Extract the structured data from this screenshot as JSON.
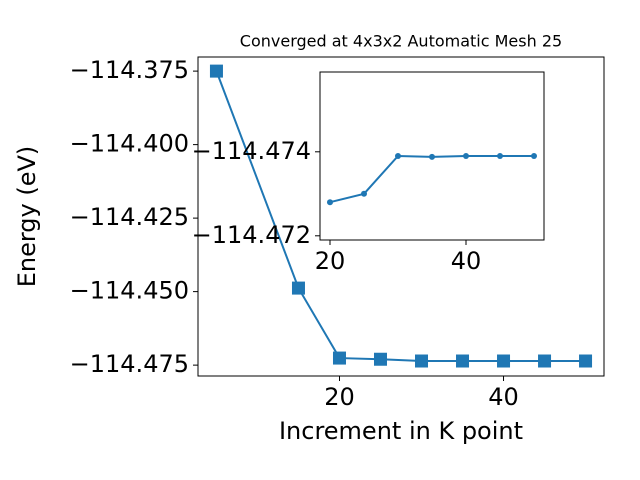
{
  "chart_data": [
    {
      "type": "line",
      "title": "Converged at 4x3x2 Automatic Mesh 25",
      "x_label": "Increment in K point",
      "y_label": "Energy (eV)",
      "marker": "square",
      "color": "#1f77b4",
      "x": [
        5,
        15,
        20,
        25,
        30,
        35,
        40,
        45,
        50
      ],
      "values": [
        -114.375,
        -114.4488,
        -114.4726,
        -114.473,
        -114.4736,
        -114.4736,
        -114.4736,
        -114.4736,
        -114.4736
      ],
      "xlim": [
        2.75,
        52.25
      ],
      "ylim": [
        -114.4787,
        -114.3702
      ],
      "xticks": [
        20,
        40
      ],
      "yticks": [
        {
          "value": -114.375,
          "label": "−114.375"
        },
        {
          "value": -114.4,
          "label": "−114.400"
        },
        {
          "value": -114.425,
          "label": "−114.425"
        },
        {
          "value": -114.45,
          "label": "−114.450"
        },
        {
          "value": -114.475,
          "label": "−114.475"
        }
      ]
    },
    {
      "type": "line",
      "marker": "circle",
      "color": "#1f77b4",
      "x": [
        20,
        25,
        30,
        35,
        40,
        45,
        50
      ],
      "values": [
        -114.4728,
        -114.473,
        -114.4739,
        -114.47388,
        -114.4739,
        -114.4739,
        -114.4739
      ],
      "xlim": [
        18.53,
        51.47
      ],
      "ylim": [
        -114.4719,
        -114.4759
      ],
      "xticks": [
        20,
        40
      ],
      "yticks": [
        {
          "value": -114.474,
          "label": "−114.474"
        },
        {
          "value": -114.472,
          "label": "−114.472"
        }
      ]
    }
  ]
}
